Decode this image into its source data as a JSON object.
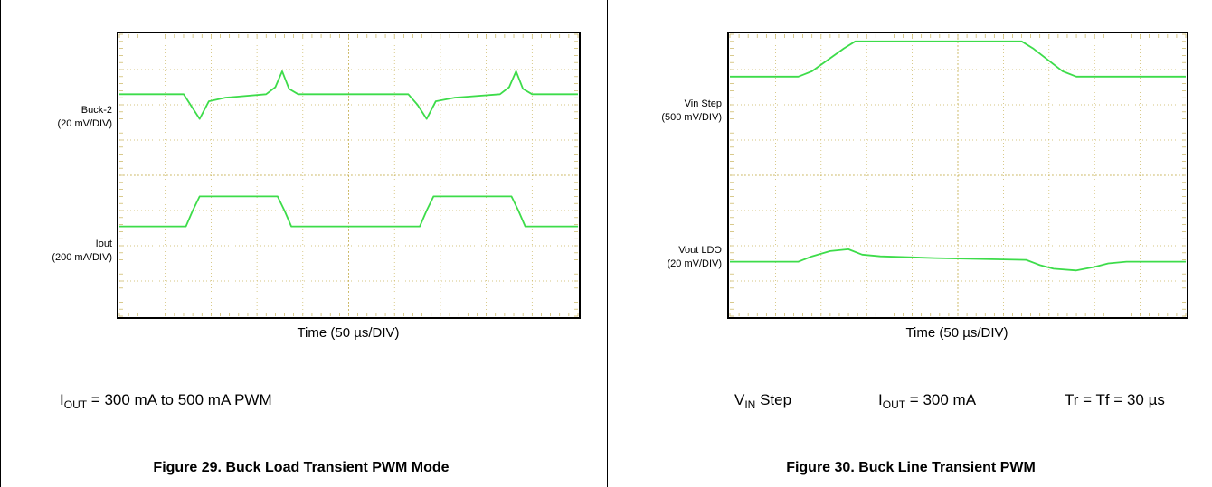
{
  "figures": [
    {
      "caption": "Figure 29. Buck Load Transient PWM Mode",
      "xlabel": "Time (50 µs/DIV)",
      "channels": [
        {
          "name": "Buck-2",
          "scale": "(20 mV/DIV)"
        },
        {
          "name": "Iout",
          "scale": "(200 mA/DIV)"
        }
      ],
      "conditions": [
        {
          "main": "I",
          "sub": "OUT",
          "rest": " = 300 mA to 500 mA PWM"
        }
      ]
    },
    {
      "caption": "Figure 30. Buck Line Transient PWM",
      "xlabel": "Time (50 µs/DIV)",
      "channels": [
        {
          "name": "Vin Step",
          "scale": "(500 mV/DIV)"
        },
        {
          "name": "Vout LDO",
          "scale": "(20 mV/DIV)"
        }
      ],
      "conditions": [
        {
          "main": "V",
          "sub": "IN",
          "rest": " Step"
        },
        {
          "main": "I",
          "sub": "OUT",
          "rest": " = 300 mA"
        },
        {
          "main": "Tr = Tf = 30 µs",
          "sub": "",
          "rest": ""
        }
      ]
    }
  ],
  "chart_data": [
    {
      "type": "line",
      "title": "Figure 29. Buck Load Transient PWM Mode",
      "xlabel": "Time (50 µs/DIV)",
      "xlim": [
        0,
        10
      ],
      "ylim": [
        0,
        8
      ],
      "grid": true,
      "trace_color": "#3ddc4a",
      "grid_color": "#c9b45a",
      "series": [
        {
          "name": "Buck-2",
          "x": [
            0,
            1.4,
            1.55,
            1.75,
            1.95,
            2.3,
            3.2,
            3.4,
            3.55,
            3.7,
            3.9,
            6.3,
            6.5,
            6.7,
            6.9,
            7.3,
            8.3,
            8.5,
            8.65,
            8.8,
            9.0,
            10
          ],
          "y": [
            6.3,
            6.3,
            6.0,
            5.6,
            6.1,
            6.2,
            6.3,
            6.5,
            6.95,
            6.45,
            6.3,
            6.3,
            6.0,
            5.6,
            6.1,
            6.2,
            6.3,
            6.5,
            6.95,
            6.45,
            6.3,
            6.3
          ]
        },
        {
          "name": "Iout",
          "x": [
            0,
            1.45,
            1.6,
            1.75,
            3.45,
            3.6,
            3.75,
            6.55,
            6.7,
            6.85,
            8.55,
            8.7,
            8.85,
            10
          ],
          "y": [
            2.55,
            2.55,
            3.0,
            3.4,
            3.4,
            3.0,
            2.55,
            2.55,
            3.0,
            3.4,
            3.4,
            3.0,
            2.55,
            2.55
          ]
        }
      ]
    },
    {
      "type": "line",
      "title": "Figure 30. Buck Line Transient PWM",
      "xlabel": "Time (50 µs/DIV)",
      "xlim": [
        0,
        10
      ],
      "ylim": [
        0,
        8
      ],
      "grid": true,
      "trace_color": "#3ddc4a",
      "grid_color": "#c9b45a",
      "series": [
        {
          "name": "Vin Step",
          "x": [
            0,
            1.5,
            1.8,
            2.5,
            2.75,
            6.4,
            6.65,
            7.3,
            7.6,
            10
          ],
          "y": [
            6.8,
            6.8,
            6.95,
            7.6,
            7.8,
            7.8,
            7.6,
            6.95,
            6.8,
            6.8
          ]
        },
        {
          "name": "Vout LDO",
          "x": [
            0,
            1.5,
            1.8,
            2.2,
            2.6,
            2.9,
            3.3,
            4.5,
            6.5,
            6.8,
            7.1,
            7.6,
            8.0,
            8.3,
            8.7,
            10
          ],
          "y": [
            1.55,
            1.55,
            1.7,
            1.85,
            1.9,
            1.75,
            1.7,
            1.65,
            1.6,
            1.45,
            1.35,
            1.3,
            1.4,
            1.5,
            1.55,
            1.55
          ]
        }
      ]
    }
  ]
}
